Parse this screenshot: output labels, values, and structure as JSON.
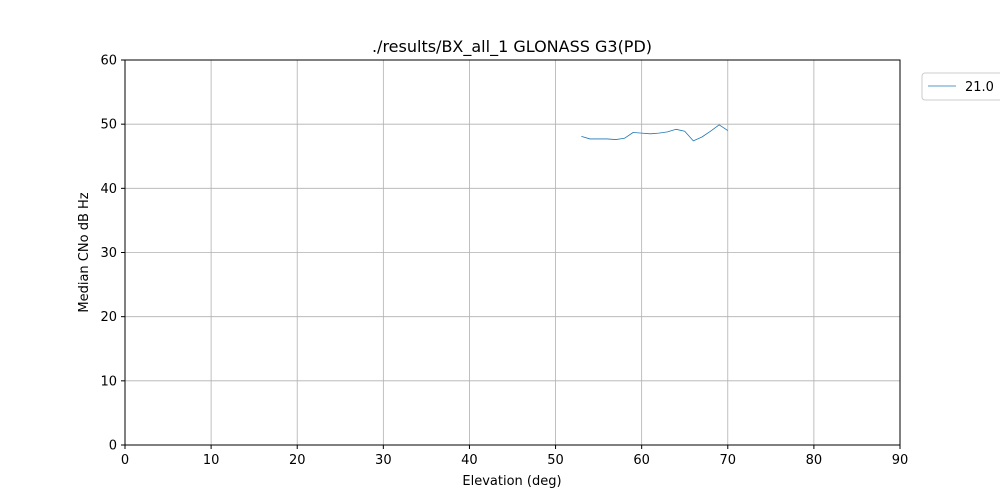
{
  "chart_data": {
    "type": "line",
    "title": "./results/BX_all_1 GLONASS G3(PD)",
    "xlabel": "Elevation (deg)",
    "ylabel": "Median CNo dB Hz",
    "xlim": [
      0,
      90
    ],
    "ylim": [
      0,
      60
    ],
    "xticks": [
      0,
      10,
      20,
      30,
      40,
      50,
      60,
      70,
      80,
      90
    ],
    "yticks": [
      0,
      10,
      20,
      30,
      40,
      50,
      60
    ],
    "grid": true,
    "legend_position": "outside-top-right",
    "series": [
      {
        "name": "21.0",
        "color": "#1f77b4",
        "x": [
          53,
          54,
          55,
          56,
          57,
          58,
          59,
          60,
          61,
          62,
          63,
          64,
          65,
          66,
          67,
          68,
          69,
          70
        ],
        "y": [
          48.1,
          47.7,
          47.7,
          47.7,
          47.6,
          47.8,
          48.7,
          48.6,
          48.5,
          48.6,
          48.8,
          49.2,
          48.9,
          47.4,
          48.0,
          48.9,
          49.9,
          49.0
        ]
      }
    ]
  }
}
